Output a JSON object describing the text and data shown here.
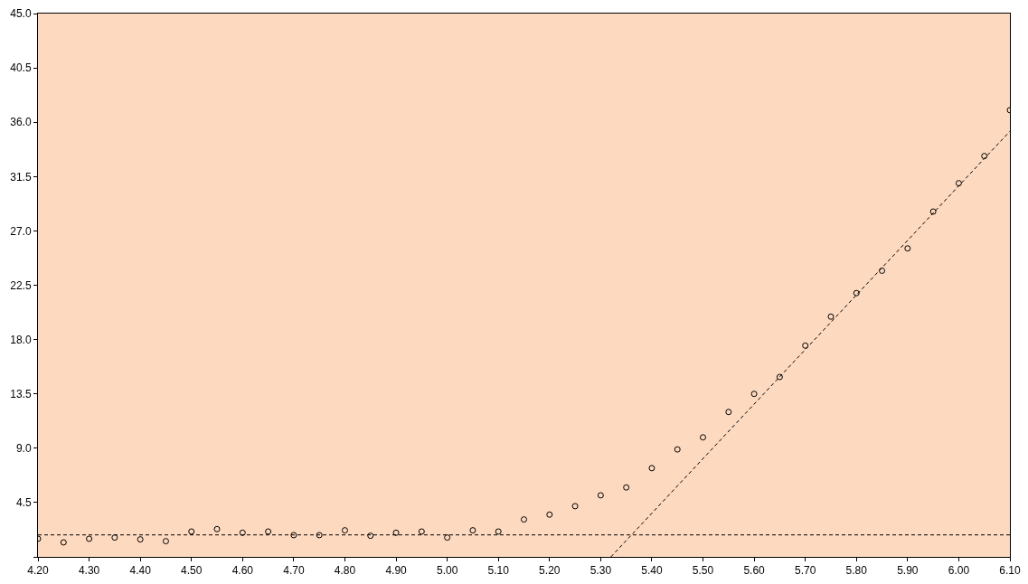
{
  "chart_data": {
    "type": "scatter",
    "x": [
      4.2,
      4.25,
      4.3,
      4.35,
      4.4,
      4.45,
      4.5,
      4.55,
      4.6,
      4.65,
      4.7,
      4.75,
      4.8,
      4.85,
      4.9,
      4.95,
      5.0,
      5.05,
      5.1,
      5.15,
      5.2,
      5.25,
      5.3,
      5.35,
      5.4,
      5.45,
      5.5,
      5.55,
      5.6,
      5.65,
      5.7,
      5.75,
      5.8,
      5.85,
      5.9,
      5.95,
      6.0,
      6.05,
      6.1
    ],
    "series": [
      {
        "color": "#000000",
        "marker": "circle",
        "values": [
          1.5,
          1.2,
          1.5,
          1.6,
          1.45,
          1.3,
          2.1,
          2.3,
          2.0,
          2.1,
          1.8,
          1.8,
          2.2,
          1.75,
          2.0,
          2.1,
          1.6,
          2.2,
          2.1,
          3.1,
          3.5,
          4.2,
          5.1,
          5.75,
          7.35,
          8.9,
          9.9,
          12.0,
          13.5,
          14.9,
          17.5,
          19.9,
          21.85,
          23.7,
          25.55,
          28.6,
          30.95,
          33.2,
          37.0
        ]
      },
      {
        "type": "line",
        "color": "#000000",
        "line_style": "dashed",
        "marker": "none",
        "x": [
          5.32,
          6.1
        ],
        "values": [
          0,
          35.25
        ]
      }
    ],
    "ref_lines": [
      {
        "axis": "y",
        "value": 1.82,
        "color": "#000000",
        "line_style": "dashed"
      }
    ],
    "xlim": [
      4.2,
      6.1
    ],
    "xticks": [
      {
        "value": 4.2,
        "label": "4.20"
      },
      {
        "value": 4.3,
        "label": "4.30"
      },
      {
        "value": 4.4,
        "label": "4.40"
      },
      {
        "value": 4.5,
        "label": "4.50"
      },
      {
        "value": 4.6,
        "label": "4.60"
      },
      {
        "value": 4.7,
        "label": "4.70"
      },
      {
        "value": 4.8,
        "label": "4.80"
      },
      {
        "value": 4.9,
        "label": "4.90"
      },
      {
        "value": 5.0,
        "label": "5.00"
      },
      {
        "value": 5.1,
        "label": "5.10"
      },
      {
        "value": 5.2,
        "label": "5.20"
      },
      {
        "value": 5.3,
        "label": "5.30"
      },
      {
        "value": 5.4,
        "label": "5.40"
      },
      {
        "value": 5.5,
        "label": "5.50"
      },
      {
        "value": 5.6,
        "label": "5.60"
      },
      {
        "value": 5.7,
        "label": "5.70"
      },
      {
        "value": 5.8,
        "label": "5.80"
      },
      {
        "value": 5.9,
        "label": "5.90"
      },
      {
        "value": 6.0,
        "label": "6.00"
      },
      {
        "value": 6.1,
        "label": "6.10"
      }
    ],
    "ylim": [
      0,
      45
    ],
    "yticks": [
      {
        "value": 0,
        "label": null
      },
      4.5,
      {
        "value": 9,
        "label": "9.0"
      },
      13.5,
      {
        "value": 18,
        "label": "18.0"
      },
      22.5,
      {
        "value": 27,
        "label": "27.0"
      },
      31.5,
      {
        "value": 36,
        "label": "36.0"
      },
      40.5,
      {
        "value": 45,
        "label": "45.0"
      }
    ],
    "grid": false
  }
}
